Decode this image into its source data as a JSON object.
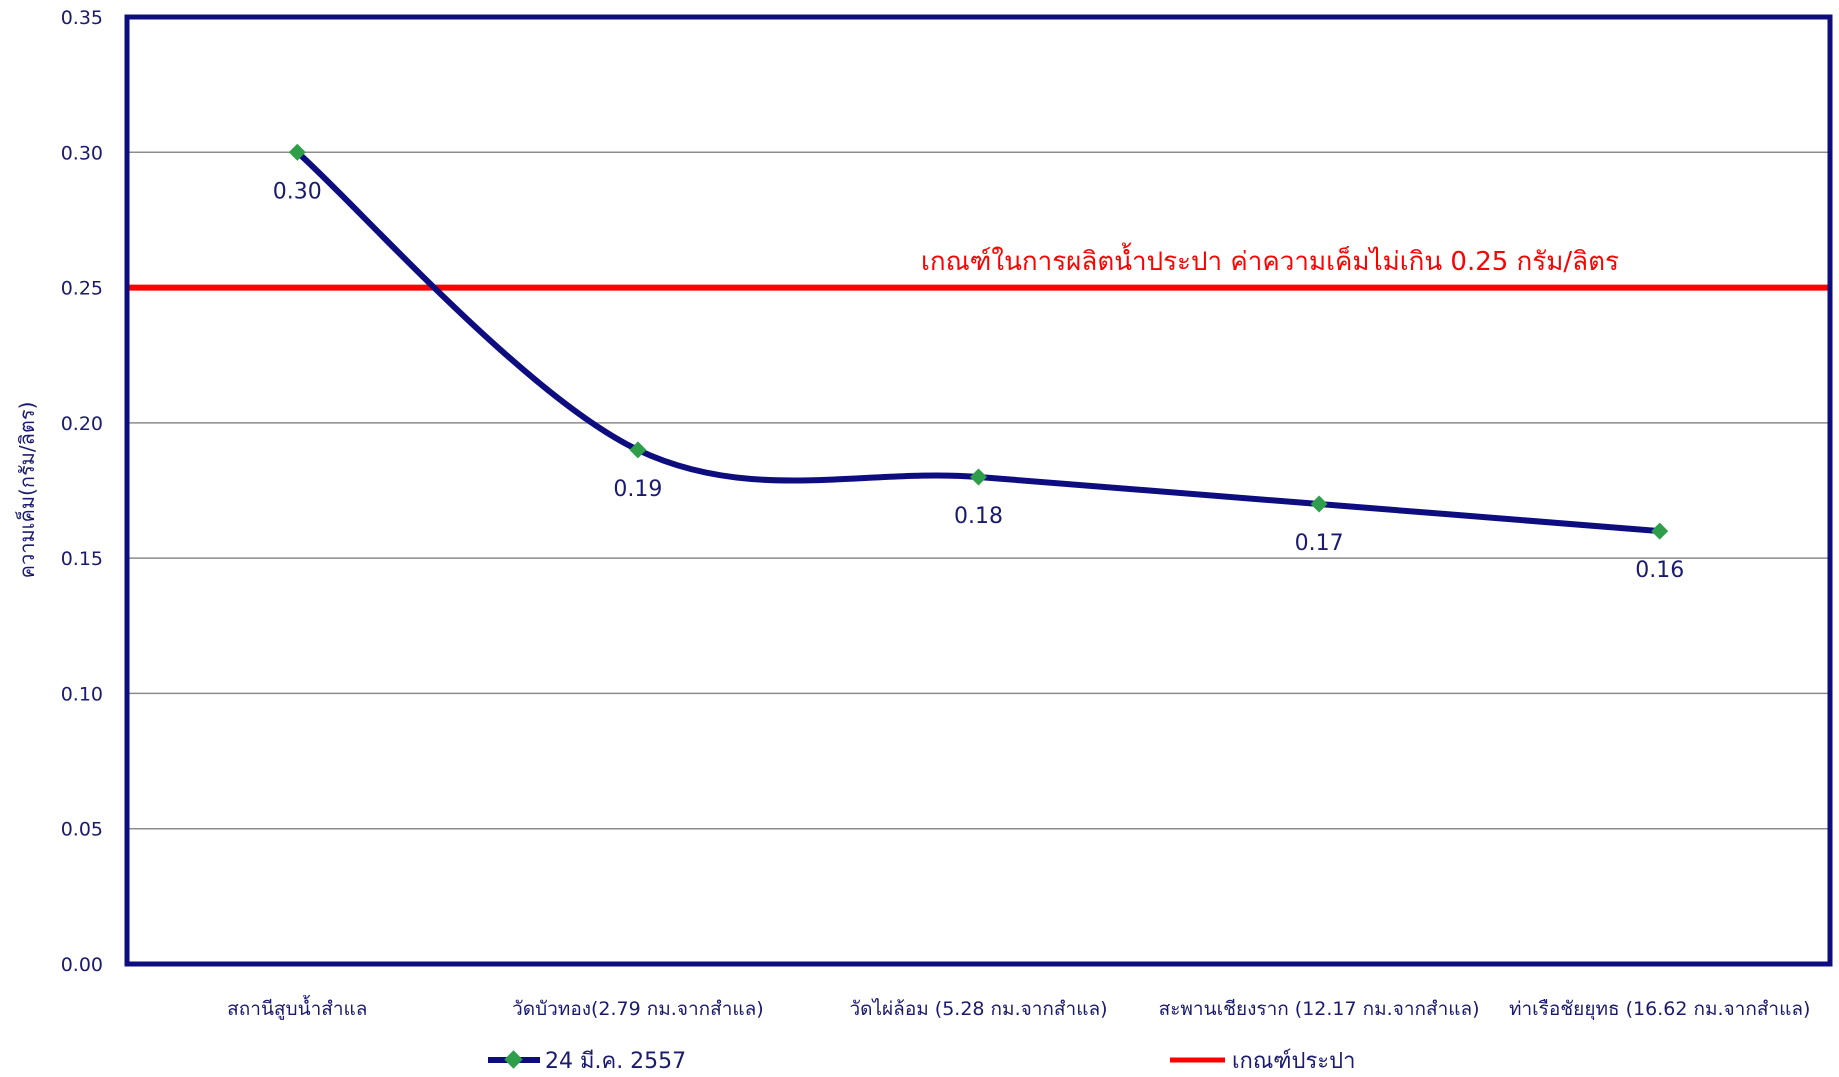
{
  "chart_data": {
    "type": "line",
    "title": "",
    "xlabel": "",
    "ylabel": "ความเค็ม(กรัม/ลิตร)",
    "ylim": [
      0,
      0.35
    ],
    "yticks": [
      "0.00",
      "0.05",
      "0.10",
      "0.15",
      "0.20",
      "0.25",
      "0.30",
      "0.35"
    ],
    "grid": true,
    "legend_position": "bottom",
    "categories": [
      "สถานีสูบน้ำสำแล",
      "วัดบัวทอง(2.79 กม.จากสำแล)",
      "วัดไผ่ล้อม (5.28 กม.จากสำแล)",
      "สะพานเชียงราก (12.17 กม.จากสำแล)",
      "ท่าเรือชัยยุทธ (16.62 กม.จากสำแล)"
    ],
    "series": [
      {
        "name": "24 มี.ค. 2557",
        "values": [
          0.3,
          0.19,
          0.18,
          0.17,
          0.16
        ],
        "data_labels": [
          "0.30",
          "0.19",
          "0.18",
          "0.17",
          "0.16"
        ],
        "color": "#0d0d80",
        "marker_color": "#2e9e4a"
      }
    ],
    "threshold": {
      "name": "เกณฑ์ประปา",
      "value": 0.25,
      "label": "เกณฑ์ในการผลิตน้ำประปา ค่าความเค็มไม่เกิน 0.25 กรัม/ลิตร",
      "color": "#ff0000"
    },
    "frame_color": "#0d0d80",
    "grid_color": "#8c8c8c"
  }
}
